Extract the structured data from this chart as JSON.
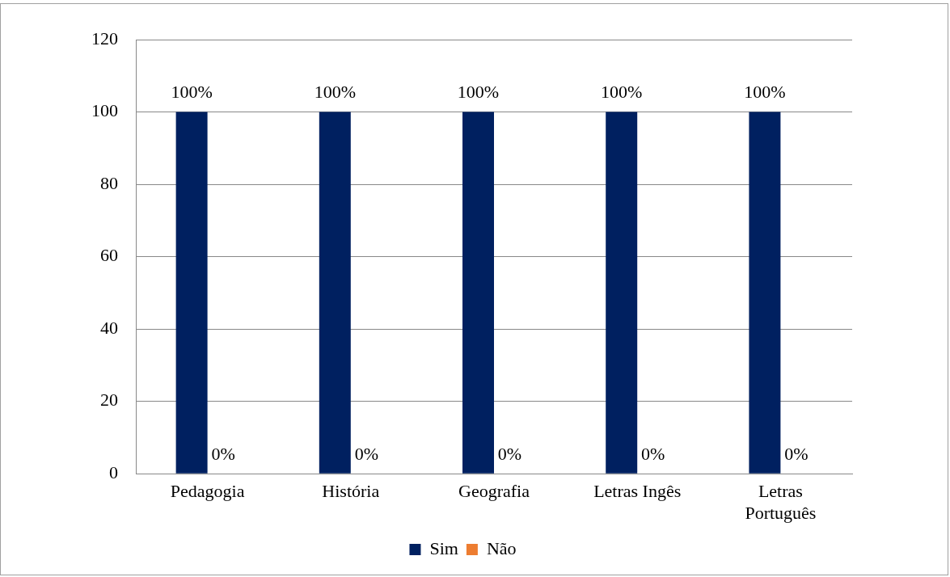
{
  "chart_data": {
    "type": "bar",
    "categories": [
      "Pedagogia",
      "História",
      "Geografia",
      "Letras Ingês",
      "Letras Português"
    ],
    "series": [
      {
        "name": "Sim",
        "color": "#002060",
        "values": [
          100,
          100,
          100,
          100,
          100
        ],
        "value_labels": [
          "100%",
          "100%",
          "100%",
          "100%",
          "100%"
        ]
      },
      {
        "name": "Não",
        "color": "#ed7d31",
        "values": [
          0,
          0,
          0,
          0,
          0
        ],
        "value_labels": [
          "0%",
          "0%",
          "0%",
          "0%",
          "0%"
        ]
      }
    ],
    "ylim": [
      0,
      120
    ],
    "yticks": [
      0,
      20,
      40,
      60,
      80,
      100,
      120
    ],
    "grid": "y",
    "legend": "bottom"
  }
}
